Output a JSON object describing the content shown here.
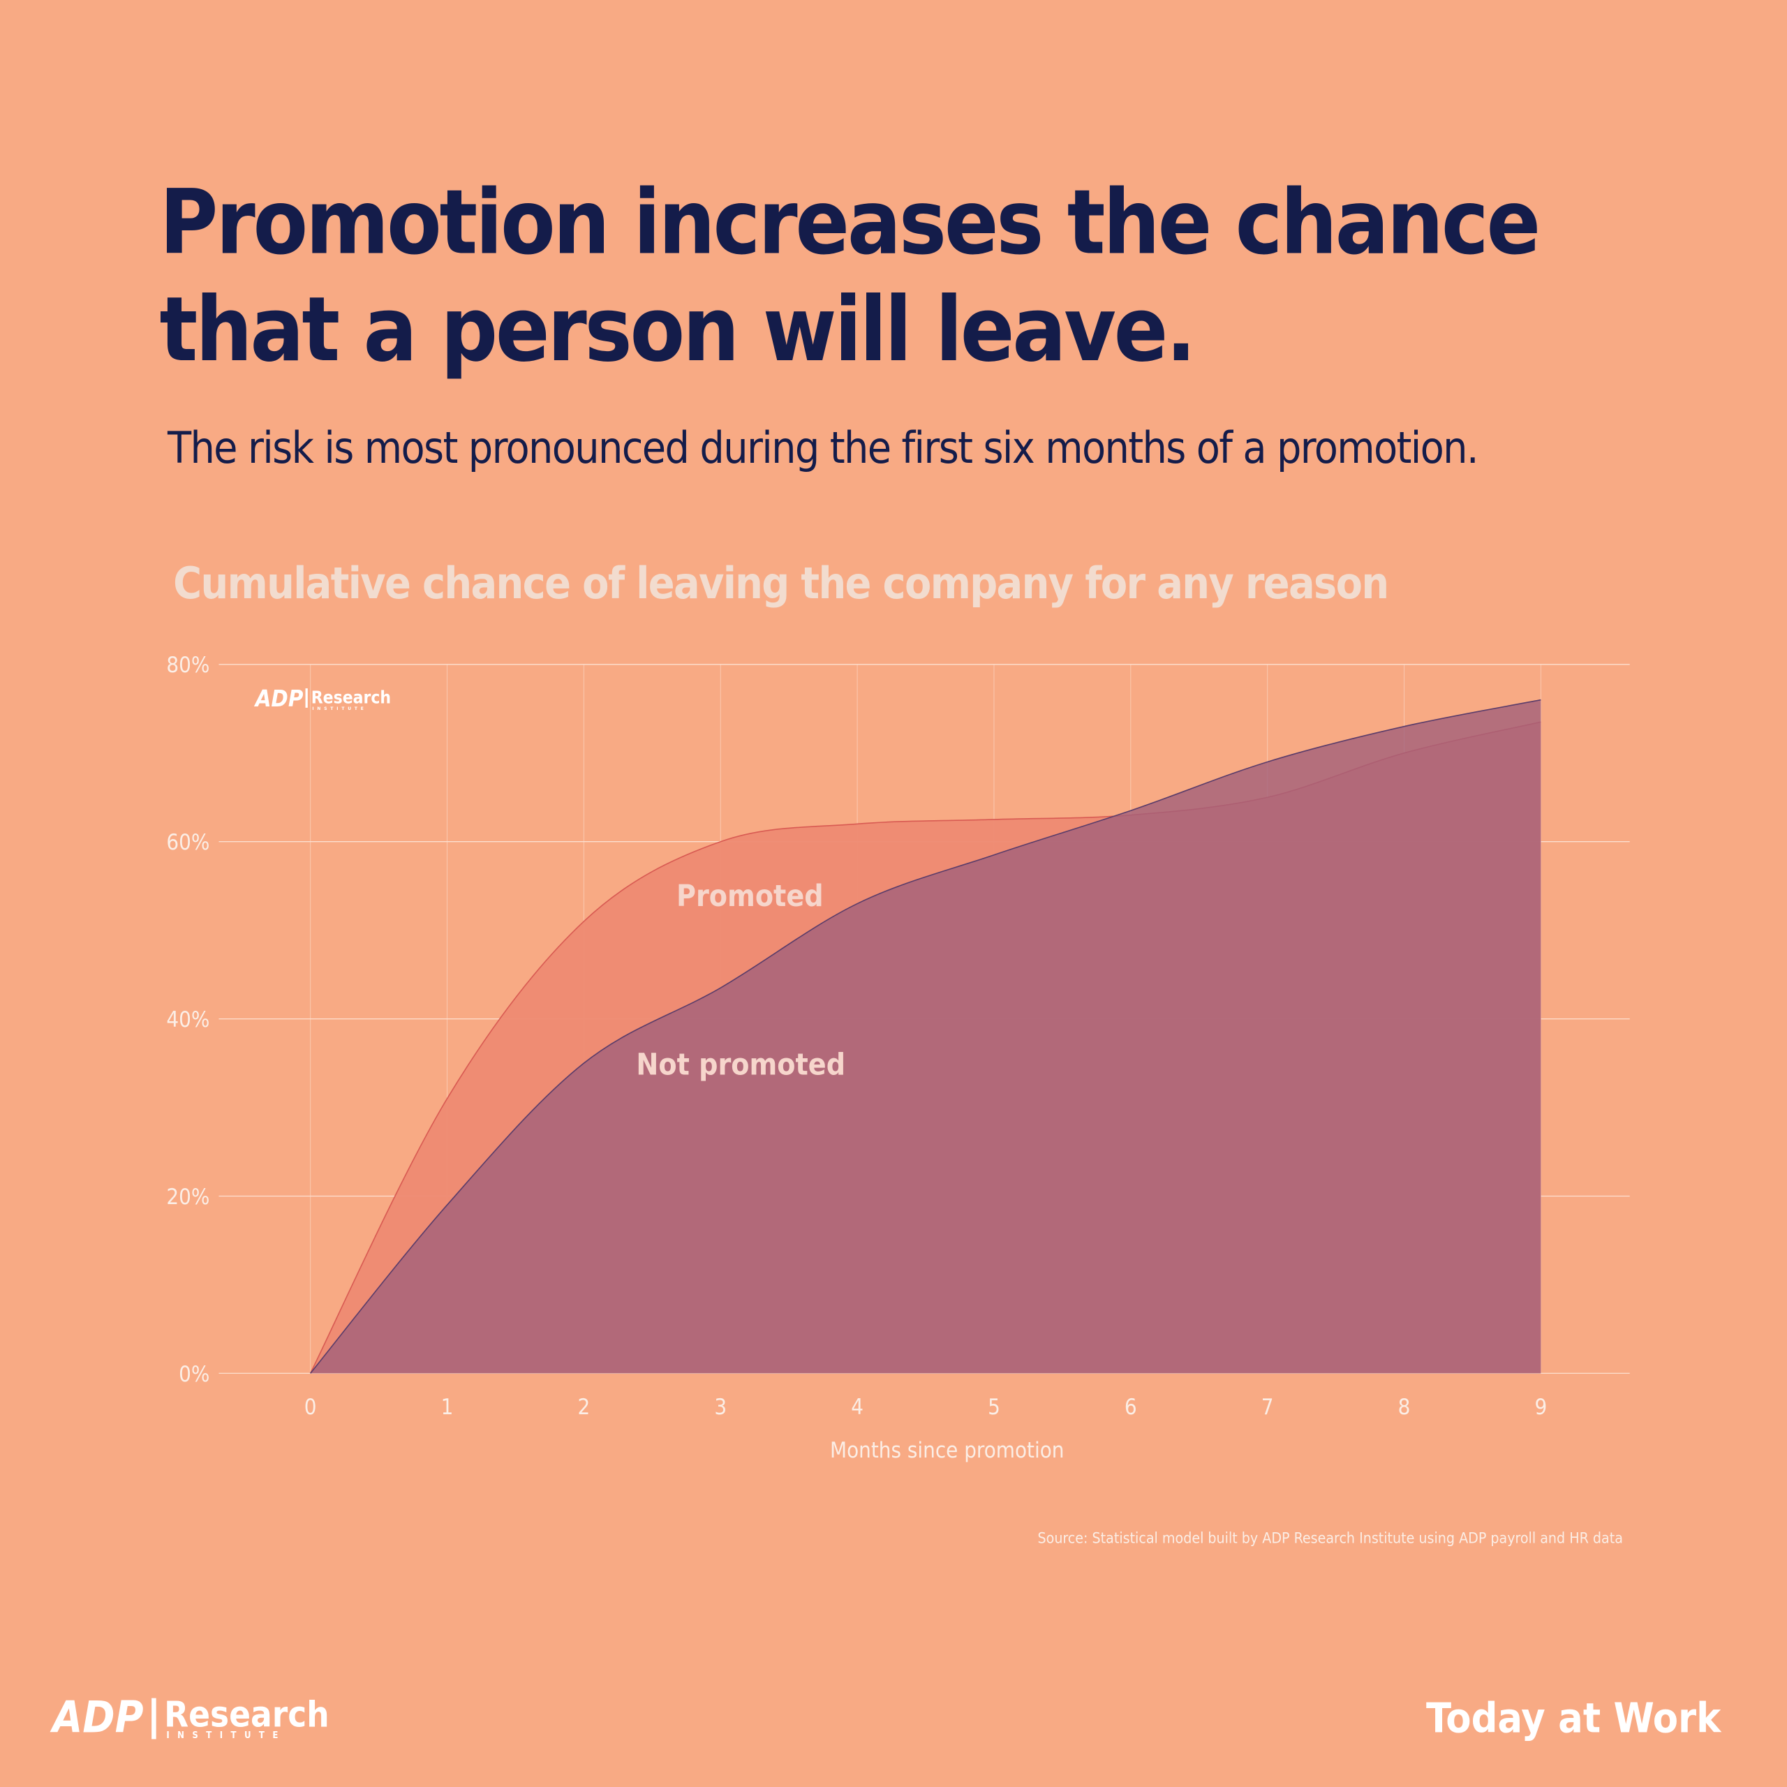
{
  "chart_data": {
    "type": "area",
    "title": [
      "Promotion increases the chance",
      "that a person will leave."
    ],
    "subtitle": "The risk is most pronounced during the first six months of a promotion.",
    "chart_title": "Cumulative chance of leaving the company for any reason",
    "x_label": "Months since promotion",
    "source": "Source: Statistical model built by ADP Research Institute using ADP payroll and HR data",
    "brand": {
      "logo": "ADP",
      "name": "Research",
      "sub": "INSTITUTE",
      "tagline": "Today at Work"
    },
    "x": [
      0,
      1,
      2,
      3,
      4,
      5,
      6,
      7,
      8,
      9
    ],
    "series": [
      {
        "name": "Promoted",
        "color": "#ee8a72",
        "values": [
          0,
          31,
          51,
          60,
          62,
          62.5,
          63,
          65,
          70,
          73.5
        ]
      },
      {
        "name": "Not promoted",
        "color": "#a2607a",
        "values": [
          0,
          19,
          35,
          43.5,
          53,
          58.5,
          63.5,
          69,
          73,
          76
        ]
      }
    ],
    "xlim": [
      -0.67,
      9.65
    ],
    "xticks": [
      0,
      1,
      2,
      3,
      4,
      5,
      6,
      7,
      8,
      9
    ],
    "ylim": [
      0,
      80
    ],
    "yticks": [
      {
        "value": 0,
        "label": "0%"
      },
      {
        "value": 20,
        "label": "20%"
      },
      {
        "value": 40,
        "label": "40%"
      },
      {
        "value": 60,
        "label": "60%"
      },
      {
        "value": 80,
        "label": "80%"
      }
    ],
    "grid": true
  }
}
